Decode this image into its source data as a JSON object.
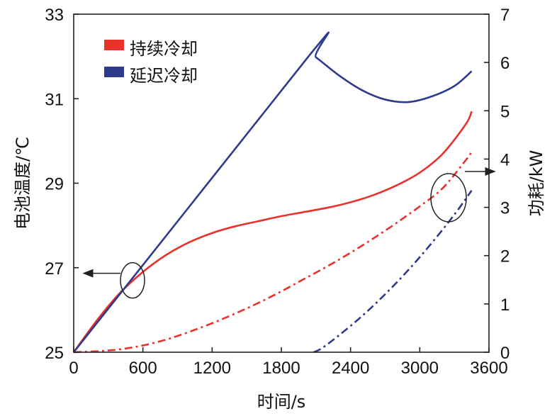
{
  "chart_data": {
    "type": "line",
    "x_range": [
      0,
      3600
    ],
    "x_ticks": [
      0,
      600,
      1200,
      1800,
      2400,
      3000,
      3600
    ],
    "xlabel": "时间/s",
    "ylim_left": [
      25,
      33
    ],
    "y_ticks_left": [
      25,
      27,
      29,
      31,
      33
    ],
    "ylabel_left": "电池温度/℃",
    "ylim_right": [
      0,
      7
    ],
    "y_ticks_right": [
      0,
      1,
      2,
      3,
      4,
      5,
      6,
      7
    ],
    "ylabel_right": "功耗/kW",
    "legend": [
      {
        "label": "持续冷却",
        "color": "#e8322b"
      },
      {
        "label": "延迟冷却",
        "color": "#2e3a8c"
      }
    ],
    "series": [
      {
        "name": "持续冷却 温度",
        "axis": "left",
        "style": "solid",
        "color": "#e8322b",
        "x": [
          0,
          200,
          400,
          600,
          800,
          1000,
          1200,
          1400,
          1600,
          1800,
          2000,
          2200,
          2400,
          2600,
          2800,
          3000,
          3200,
          3400,
          3450
        ],
        "y": [
          25.0,
          25.75,
          26.4,
          26.9,
          27.3,
          27.6,
          27.82,
          27.98,
          28.1,
          28.22,
          28.32,
          28.42,
          28.55,
          28.72,
          28.95,
          29.25,
          29.7,
          30.4,
          30.7
        ]
      },
      {
        "name": "延迟冷却 温度",
        "axis": "left",
        "style": "solid",
        "color": "#2e3a8c",
        "x": [
          0,
          2050,
          2100,
          2300,
          2500,
          2700,
          2900,
          3100,
          3300,
          3450
        ],
        "y": [
          25.0,
          32.05,
          31.98,
          31.55,
          31.2,
          30.98,
          30.92,
          31.05,
          31.3,
          31.65
        ]
      },
      {
        "name": "持续冷却 功耗",
        "axis": "right",
        "style": "dashdot",
        "color": "#e8322b",
        "x": [
          0,
          200,
          400,
          600,
          800,
          1000,
          1200,
          1400,
          1600,
          1800,
          2000,
          2200,
          2400,
          2600,
          2800,
          3000,
          3200,
          3400,
          3450
        ],
        "y": [
          0.0,
          0.02,
          0.06,
          0.14,
          0.26,
          0.42,
          0.6,
          0.8,
          1.02,
          1.26,
          1.52,
          1.78,
          2.06,
          2.36,
          2.68,
          3.02,
          3.4,
          3.98,
          4.15
        ]
      },
      {
        "name": "延迟冷却 功耗",
        "axis": "right",
        "style": "dashdot",
        "color": "#2e3a8c",
        "x": [
          2080,
          2150,
          2300,
          2500,
          2700,
          2900,
          3100,
          3300,
          3450
        ],
        "y": [
          0.0,
          0.08,
          0.35,
          0.75,
          1.2,
          1.7,
          2.25,
          2.85,
          3.35
        ]
      }
    ],
    "annotations": [
      {
        "type": "ellipse-arrow",
        "target_axis": "left",
        "direction": "left",
        "center_x": 510,
        "center_y_left": 26.7
      },
      {
        "type": "ellipse-arrow",
        "target_axis": "right",
        "direction": "right",
        "center_x": 3250,
        "center_y_right": 3.2
      }
    ]
  }
}
